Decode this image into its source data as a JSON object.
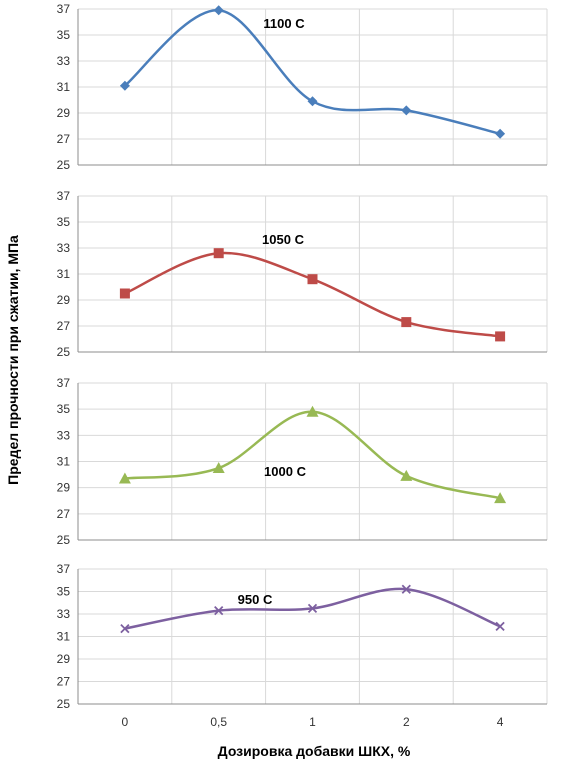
{
  "chart_data": {
    "type": "line",
    "categories": [
      "0",
      "0,5",
      "1",
      "2",
      "4"
    ],
    "ylabel": "Предел прочности при сжатии, МПа",
    "xlabel": "Дозировка добавки ШКХ, %",
    "ylim": [
      25,
      37
    ],
    "yticks": [
      "25",
      "27",
      "29",
      "31",
      "33",
      "35",
      "37"
    ],
    "grid": true,
    "panels": [
      {
        "series_label": "1100 С",
        "color": "#4a7ebb",
        "marker": "diamond",
        "values": [
          31.1,
          36.9,
          29.9,
          29.2,
          27.4
        ]
      },
      {
        "series_label": "1050 С",
        "color": "#be4b48",
        "marker": "square",
        "values": [
          29.5,
          32.6,
          30.6,
          27.3,
          26.2
        ]
      },
      {
        "series_label": "1000 С",
        "color": "#98b954",
        "marker": "triangle",
        "values": [
          29.7,
          30.5,
          34.8,
          29.9,
          28.2
        ]
      },
      {
        "series_label": "950 С",
        "color": "#7d60a0",
        "marker": "x",
        "values": [
          31.7,
          33.3,
          33.5,
          35.2,
          31.9
        ]
      }
    ]
  }
}
